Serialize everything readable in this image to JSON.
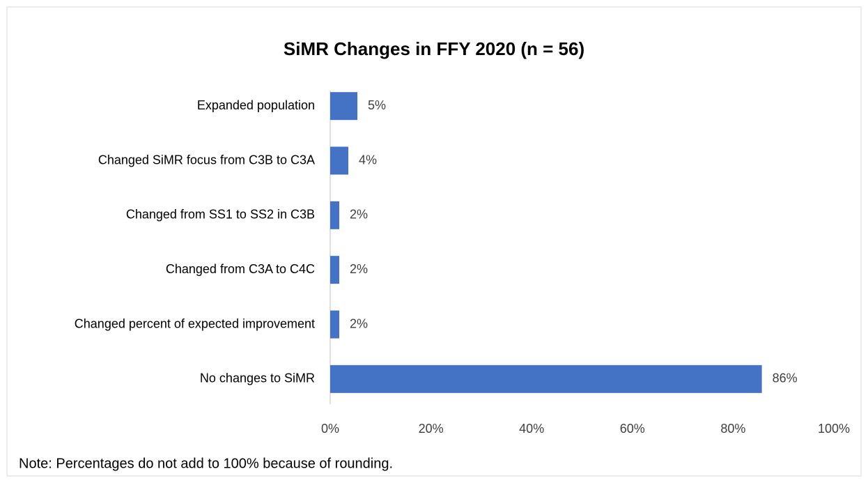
{
  "chart_data": {
    "type": "bar",
    "orientation": "horizontal",
    "title": "SiMR Changes in FFY 2020 (n = 56)",
    "categories": [
      "Expanded population",
      "Changed SiMR focus from C3B to C3A",
      "Changed from SS1 to SS2 in C3B",
      "Changed from C3A to C4C",
      "Changed percent of expected improvement",
      "No changes to SiMR"
    ],
    "values": [
      5.4,
      3.6,
      1.8,
      1.8,
      1.8,
      85.7
    ],
    "value_labels": [
      "5%",
      "4%",
      "2%",
      "2%",
      "2%",
      "86%"
    ],
    "color": "#4472c4",
    "xlim": [
      0,
      100
    ],
    "xticks": [
      {
        "value": 0,
        "label": "0%"
      },
      {
        "value": 20,
        "label": "20%"
      },
      {
        "value": 40,
        "label": "40%"
      },
      {
        "value": 60,
        "label": "60%"
      },
      {
        "value": 80,
        "label": "80%"
      },
      {
        "value": 100,
        "label": "100%"
      }
    ],
    "grid": false,
    "note": "Note:  Percentages do not add to 100% because of rounding."
  }
}
